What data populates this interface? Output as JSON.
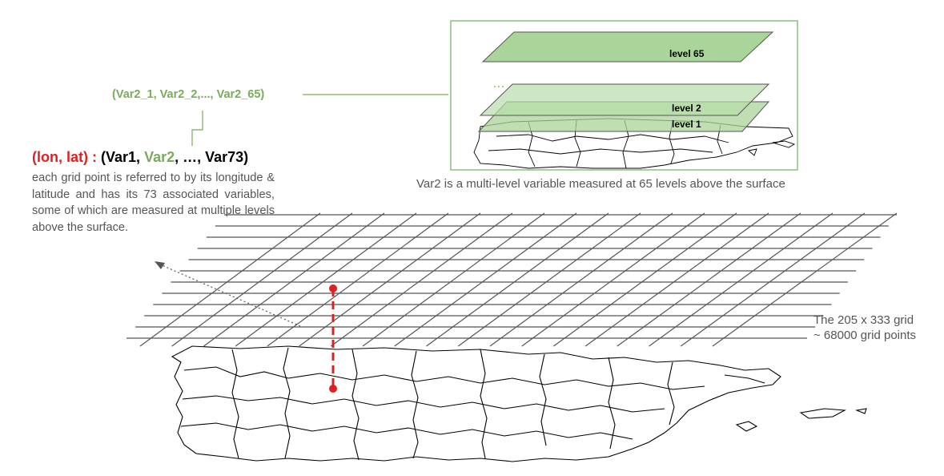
{
  "var2_tuple": "(Var2_1, Var2_2,..., Var2_65)",
  "grid_point": {
    "coord_label": "(lon, lat) :",
    "var_open": "(Var1,",
    "var_highlight": "Var2",
    "var_close": ", …, Var73)",
    "description": "each grid point is referred to by its longitude & latitude and has its 73 associated variables, some of which are measured at multiple levels above the surface."
  },
  "levels_panel": {
    "level_top": "level 65",
    "ellipsis": "…",
    "level_2": "level 2",
    "level_1": "level 1",
    "caption": "Var2 is a multi-level variable measured at 65 levels above the surface"
  },
  "grid_info": {
    "line1": "The 205 x 333 grid",
    "line2": "~ 68000 grid points"
  },
  "colors": {
    "green_text": "#7aaa5a",
    "level_fill": "#a9d49a",
    "red": "#e02020",
    "grid_line": "#555555"
  }
}
